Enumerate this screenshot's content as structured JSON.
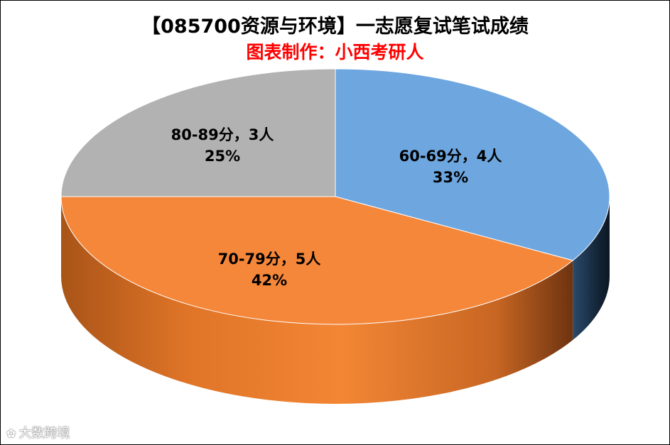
{
  "title": "【085700资源与环境】一志愿复试笔试成绩",
  "subtitle": "图表制作：小西考研人",
  "watermark": "大数跨境",
  "chart_data": {
    "type": "pie",
    "title": "【085700资源与环境】一志愿复试笔试成绩",
    "subtitle": "图表制作：小西考研人",
    "categories": [
      "60-69分",
      "70-79分",
      "80-89分"
    ],
    "values": [
      4,
      5,
      3
    ],
    "percents": [
      "33%",
      "42%",
      "25%"
    ],
    "data_labels": [
      "60-69分，4人",
      "70-79分，5人",
      "80-89分，3人"
    ],
    "colors": [
      "#6ea6df",
      "#f5873a",
      "#b2b2b2"
    ],
    "style": "3d",
    "start_angle": "12 o'clock, clockwise",
    "legend": "none"
  }
}
